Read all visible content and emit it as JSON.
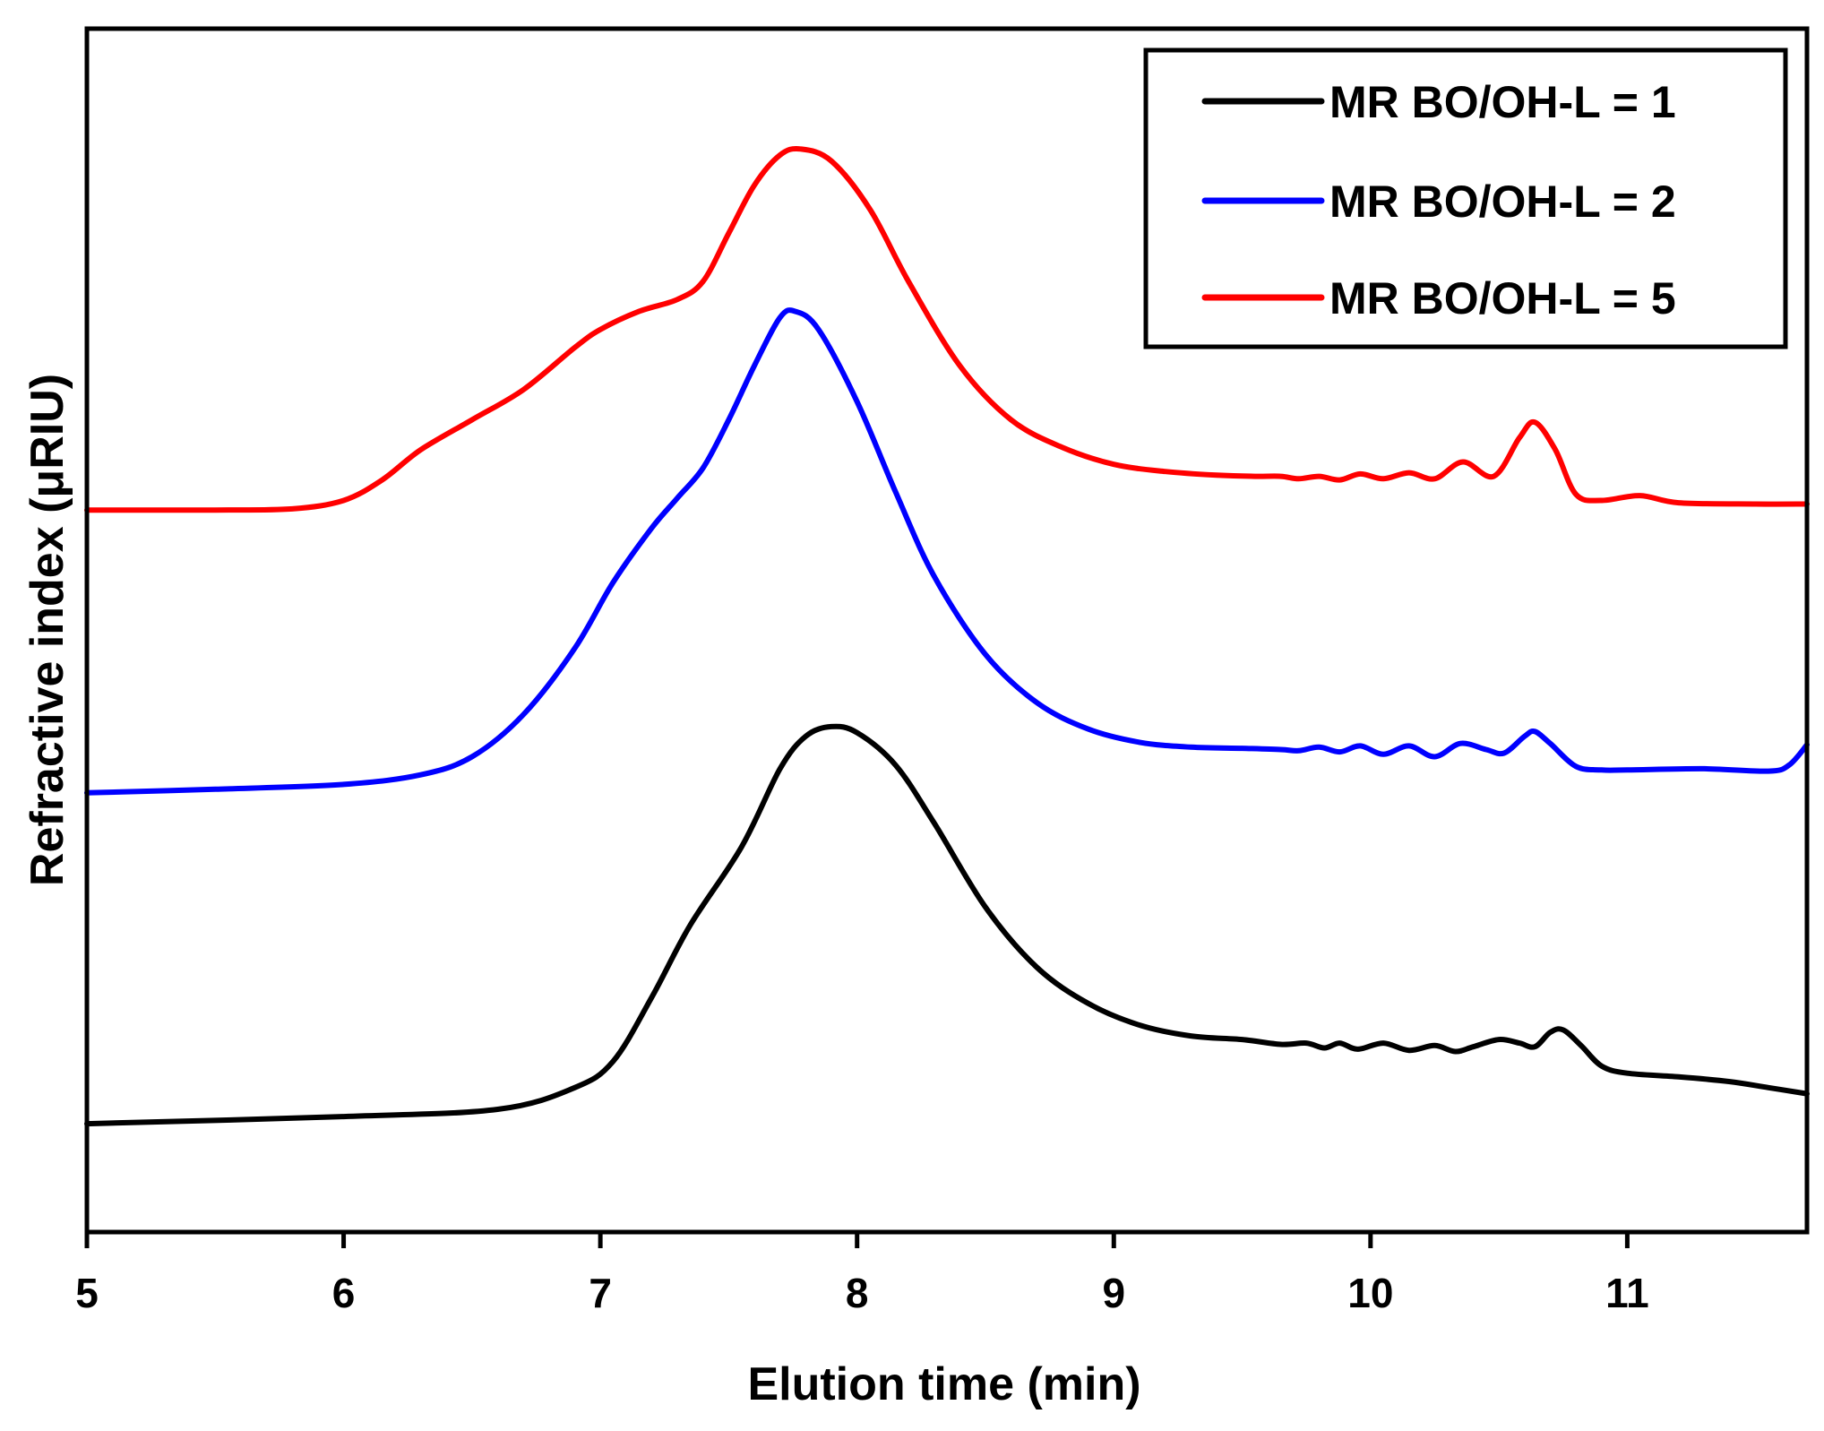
{
  "chart_data": {
    "type": "line",
    "title": "",
    "xlabel": "Elution time (min)",
    "ylabel": "Refractive index (μRIU)",
    "xlim": [
      5,
      11.7
    ],
    "ylim": [
      0,
      100
    ],
    "xticks": [
      "5",
      "6",
      "7",
      "8",
      "9",
      "10",
      "11"
    ],
    "grid": false,
    "legend_position": "top-right",
    "series": [
      {
        "name": "MR BO/OH-L = 1",
        "color": "#000000",
        "points": [
          [
            5.0,
            9.0
          ],
          [
            6.0,
            9.6
          ],
          [
            6.6,
            10.2
          ],
          [
            6.9,
            12.0
          ],
          [
            7.05,
            14.2
          ],
          [
            7.2,
            19.5
          ],
          [
            7.35,
            25.5
          ],
          [
            7.55,
            32.0
          ],
          [
            7.7,
            38.5
          ],
          [
            7.8,
            41.2
          ],
          [
            7.9,
            42.0
          ],
          [
            8.0,
            41.5
          ],
          [
            8.15,
            38.8
          ],
          [
            8.3,
            34.0
          ],
          [
            8.5,
            27.0
          ],
          [
            8.7,
            22.0
          ],
          [
            8.9,
            19.0
          ],
          [
            9.1,
            17.2
          ],
          [
            9.3,
            16.3
          ],
          [
            9.5,
            16.0
          ],
          [
            9.65,
            15.6
          ],
          [
            9.75,
            15.7
          ],
          [
            9.82,
            15.3
          ],
          [
            9.88,
            15.7
          ],
          [
            9.95,
            15.2
          ],
          [
            10.05,
            15.7
          ],
          [
            10.15,
            15.1
          ],
          [
            10.25,
            15.5
          ],
          [
            10.33,
            15.0
          ],
          [
            10.4,
            15.4
          ],
          [
            10.5,
            16.0
          ],
          [
            10.58,
            15.7
          ],
          [
            10.64,
            15.4
          ],
          [
            10.7,
            16.6
          ],
          [
            10.75,
            16.8
          ],
          [
            10.82,
            15.5
          ],
          [
            10.9,
            13.8
          ],
          [
            11.0,
            13.2
          ],
          [
            11.2,
            12.9
          ],
          [
            11.4,
            12.5
          ],
          [
            11.55,
            12.0
          ],
          [
            11.7,
            11.5
          ]
        ]
      },
      {
        "name": "MR BO/OH-L = 2",
        "color": "#0000ff",
        "points": [
          [
            5.0,
            36.5
          ],
          [
            5.5,
            36.8
          ],
          [
            6.0,
            37.2
          ],
          [
            6.3,
            38.0
          ],
          [
            6.5,
            39.5
          ],
          [
            6.7,
            43.0
          ],
          [
            6.9,
            48.5
          ],
          [
            7.05,
            54.0
          ],
          [
            7.2,
            58.5
          ],
          [
            7.3,
            61.0
          ],
          [
            7.4,
            63.5
          ],
          [
            7.5,
            67.5
          ],
          [
            7.6,
            72.0
          ],
          [
            7.7,
            76.0
          ],
          [
            7.76,
            76.5
          ],
          [
            7.85,
            75.0
          ],
          [
            8.0,
            69.0
          ],
          [
            8.15,
            61.5
          ],
          [
            8.3,
            54.5
          ],
          [
            8.5,
            48.0
          ],
          [
            8.7,
            44.0
          ],
          [
            8.9,
            41.8
          ],
          [
            9.1,
            40.7
          ],
          [
            9.3,
            40.3
          ],
          [
            9.5,
            40.2
          ],
          [
            9.65,
            40.1
          ],
          [
            9.72,
            40.0
          ],
          [
            9.8,
            40.3
          ],
          [
            9.88,
            39.9
          ],
          [
            9.96,
            40.4
          ],
          [
            10.05,
            39.7
          ],
          [
            10.15,
            40.4
          ],
          [
            10.25,
            39.5
          ],
          [
            10.35,
            40.6
          ],
          [
            10.45,
            40.1
          ],
          [
            10.52,
            39.8
          ],
          [
            10.6,
            41.2
          ],
          [
            10.64,
            41.6
          ],
          [
            10.7,
            40.6
          ],
          [
            10.8,
            38.7
          ],
          [
            10.9,
            38.4
          ],
          [
            11.0,
            38.4
          ],
          [
            11.3,
            38.5
          ],
          [
            11.55,
            38.3
          ],
          [
            11.63,
            38.8
          ],
          [
            11.7,
            40.5
          ]
        ]
      },
      {
        "name": "MR BO/OH-L = 5",
        "color": "#ff0000",
        "points": [
          [
            5.0,
            60.0
          ],
          [
            5.5,
            60.0
          ],
          [
            5.8,
            60.1
          ],
          [
            6.0,
            60.8
          ],
          [
            6.15,
            62.5
          ],
          [
            6.3,
            65.0
          ],
          [
            6.5,
            67.5
          ],
          [
            6.7,
            70.0
          ],
          [
            6.9,
            73.5
          ],
          [
            7.0,
            75.0
          ],
          [
            7.15,
            76.5
          ],
          [
            7.3,
            77.5
          ],
          [
            7.4,
            79.0
          ],
          [
            7.5,
            83.0
          ],
          [
            7.6,
            87.0
          ],
          [
            7.7,
            89.5
          ],
          [
            7.78,
            90.0
          ],
          [
            7.9,
            89.0
          ],
          [
            8.05,
            85.0
          ],
          [
            8.2,
            79.0
          ],
          [
            8.4,
            72.0
          ],
          [
            8.6,
            67.5
          ],
          [
            8.8,
            65.2
          ],
          [
            9.0,
            63.8
          ],
          [
            9.2,
            63.2
          ],
          [
            9.4,
            62.9
          ],
          [
            9.55,
            62.8
          ],
          [
            9.65,
            62.8
          ],
          [
            9.72,
            62.6
          ],
          [
            9.8,
            62.8
          ],
          [
            9.88,
            62.5
          ],
          [
            9.96,
            63.0
          ],
          [
            10.05,
            62.6
          ],
          [
            10.15,
            63.1
          ],
          [
            10.25,
            62.6
          ],
          [
            10.36,
            64.0
          ],
          [
            10.48,
            62.8
          ],
          [
            10.58,
            66.0
          ],
          [
            10.64,
            67.3
          ],
          [
            10.72,
            65.0
          ],
          [
            10.8,
            61.3
          ],
          [
            10.9,
            60.8
          ],
          [
            11.05,
            61.2
          ],
          [
            11.2,
            60.6
          ],
          [
            11.5,
            60.5
          ],
          [
            11.7,
            60.5
          ]
        ]
      }
    ]
  }
}
